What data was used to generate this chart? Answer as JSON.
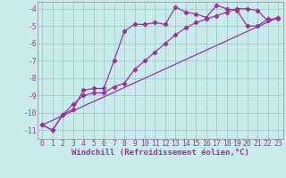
{
  "xlabel": "Windchill (Refroidissement éolien,°C)",
  "bg_color": "#c8ecec",
  "grid_color": "#a0c8c8",
  "line_color": "#993399",
  "xlim": [
    -0.5,
    23.5
  ],
  "ylim": [
    -11.5,
    -3.6
  ],
  "yticks": [
    -11,
    -10,
    -9,
    -8,
    -7,
    -6,
    -5,
    -4
  ],
  "xticks": [
    0,
    1,
    2,
    3,
    4,
    5,
    6,
    7,
    8,
    9,
    10,
    11,
    12,
    13,
    14,
    15,
    16,
    17,
    18,
    19,
    20,
    21,
    22,
    23
  ],
  "line1_x": [
    0,
    1,
    2,
    3,
    4,
    5,
    6,
    7,
    8,
    9,
    10,
    11,
    12,
    13,
    14,
    15,
    16,
    17,
    18,
    19,
    20,
    21,
    22,
    23
  ],
  "line1_y": [
    -10.7,
    -11.0,
    -10.1,
    -9.8,
    -8.7,
    -8.6,
    -8.6,
    -7.0,
    -5.3,
    -4.9,
    -4.9,
    -4.8,
    -4.9,
    -3.9,
    -4.2,
    -4.3,
    -4.5,
    -3.8,
    -4.0,
    -4.1,
    -5.0,
    -5.0,
    -4.6,
    -4.6
  ],
  "line2_x": [
    0,
    1,
    2,
    3,
    4,
    5,
    6,
    7,
    8,
    9,
    10,
    11,
    12,
    13,
    14,
    15,
    16,
    17,
    18,
    19,
    20,
    21,
    22,
    23
  ],
  "line2_y": [
    -10.7,
    -11.0,
    -10.1,
    -9.5,
    -9.0,
    -8.85,
    -8.85,
    -8.5,
    -8.3,
    -7.5,
    -7.0,
    -6.5,
    -6.0,
    -5.5,
    -5.1,
    -4.8,
    -4.6,
    -4.4,
    -4.2,
    -4.0,
    -4.0,
    -4.1,
    -4.7,
    -4.5
  ],
  "line3_x": [
    0,
    23
  ],
  "line3_y": [
    -10.7,
    -4.5
  ],
  "marker": "D",
  "marker_size": 2.2,
  "linewidth": 0.9,
  "xlabel_fontsize": 6.5,
  "tick_fontsize": 5.8
}
